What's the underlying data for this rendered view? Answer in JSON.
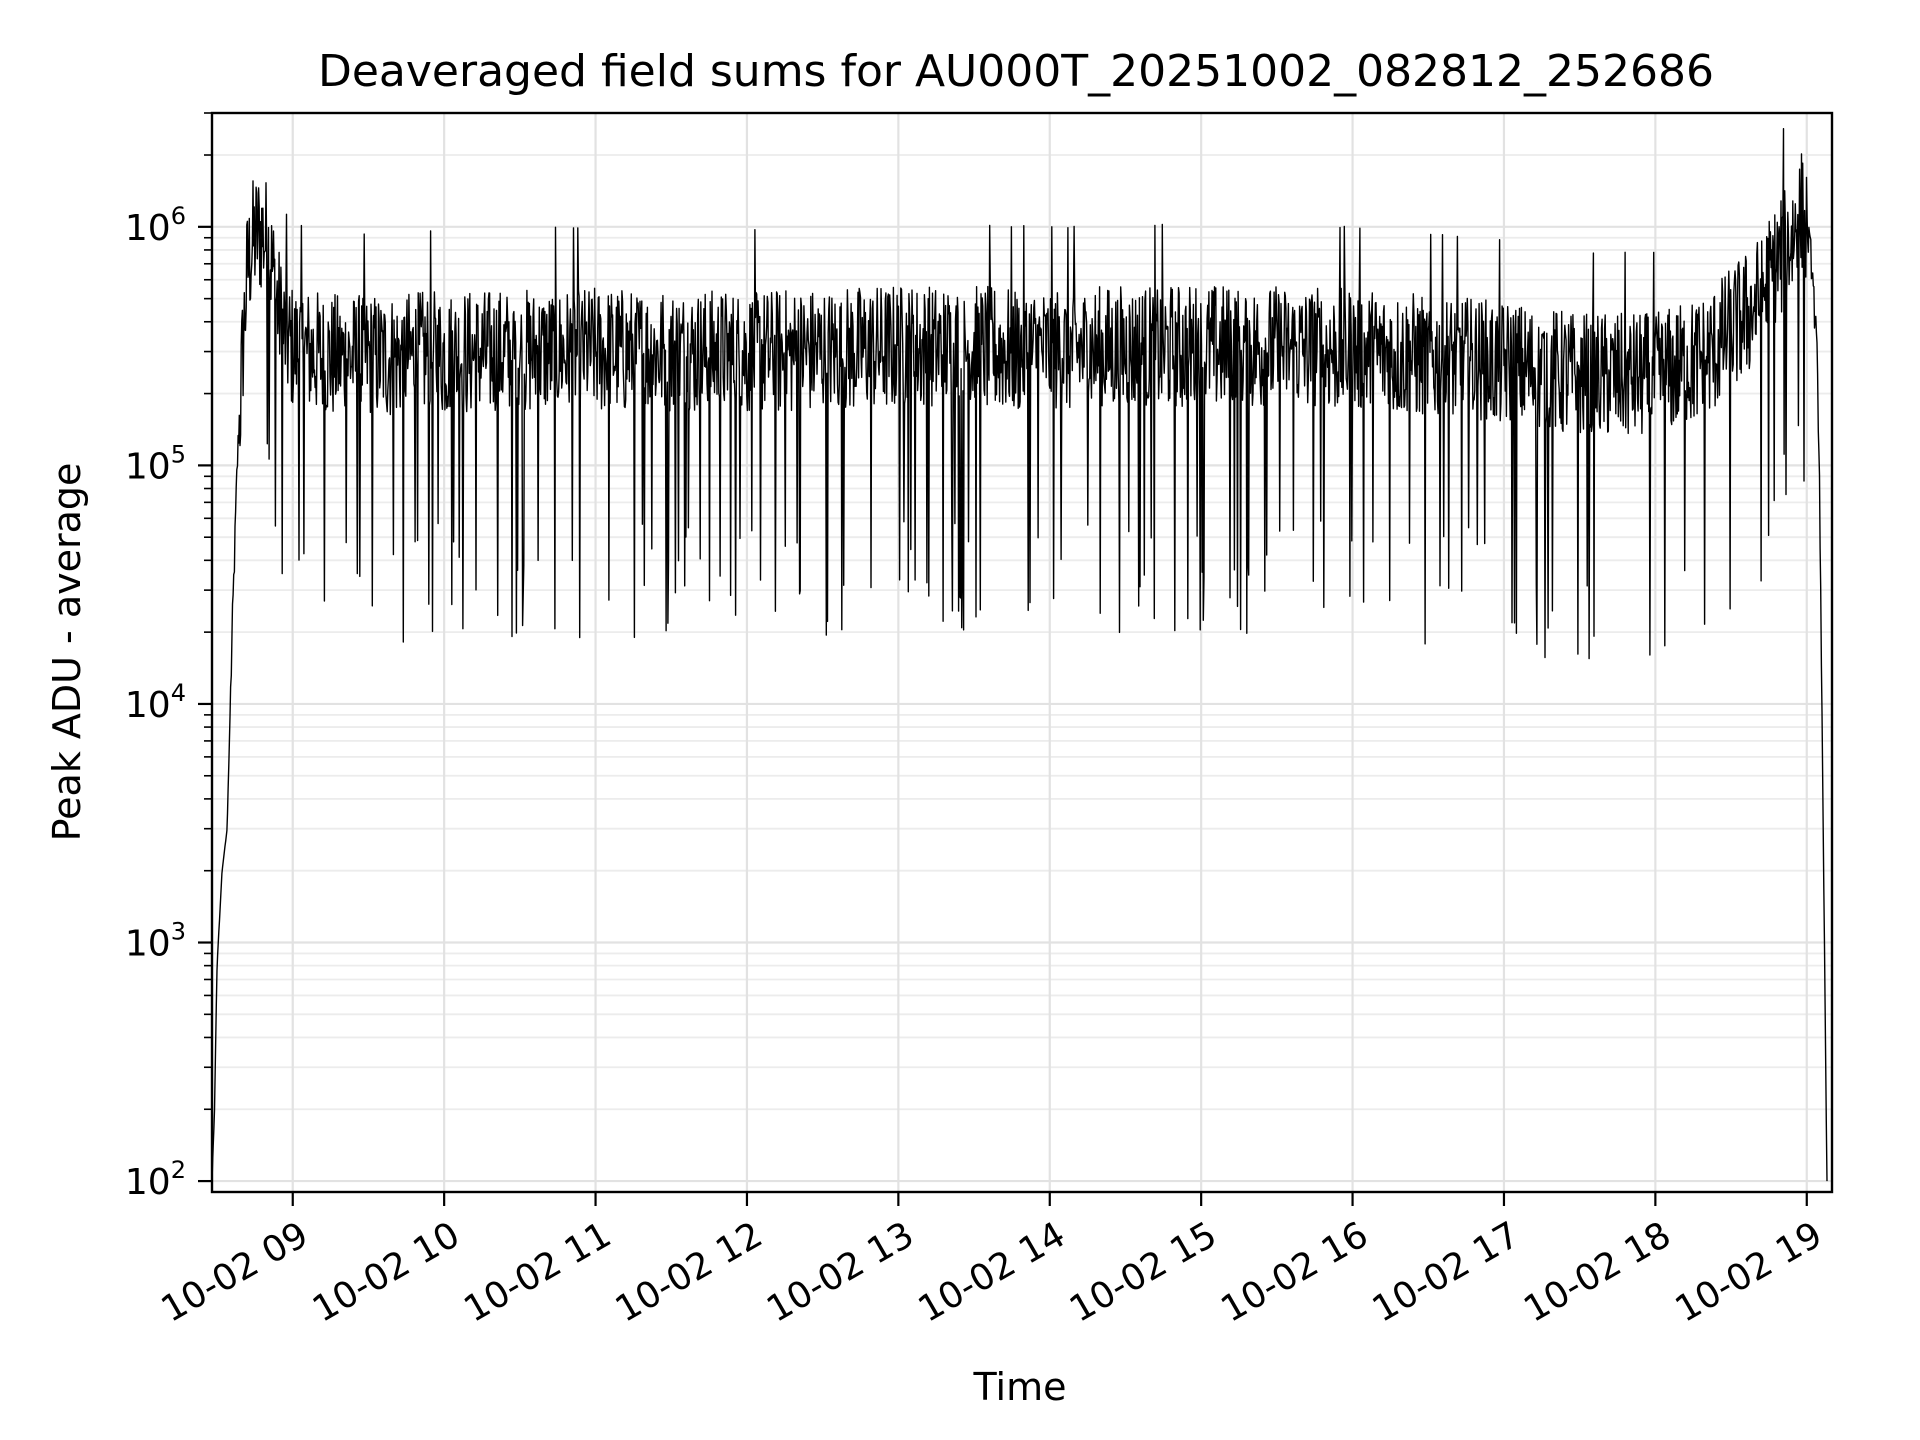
{
  "chart_data": {
    "type": "line",
    "title": "Deaveraged field sums for AU000T_20251002_082812_252686",
    "xlabel": "Time",
    "ylabel": "Peak ADU - average",
    "y_scale": "log",
    "ylim": [
      90,
      3000000
    ],
    "xlim": [
      "2025-10-02 08:28",
      "2025-10-02 19:10"
    ],
    "grid": true,
    "legend": "none",
    "line_color": "#000000",
    "x_ticks": [
      "10-02 09",
      "10-02 10",
      "10-02 11",
      "10-02 12",
      "10-02 13",
      "10-02 14",
      "10-02 15",
      "10-02 16",
      "10-02 17",
      "10-02 18",
      "10-02 19"
    ],
    "y_ticks": [
      {
        "value": 100,
        "base": "10",
        "exp": "2"
      },
      {
        "value": 1000,
        "base": "10",
        "exp": "3"
      },
      {
        "value": 10000,
        "base": "10",
        "exp": "4"
      },
      {
        "value": 100000,
        "base": "10",
        "exp": "5"
      },
      {
        "value": 1000000,
        "base": "10",
        "exp": "6"
      }
    ],
    "series": [
      {
        "x": [
          "2025-10-02 08:28",
          "2025-10-02 08:29",
          "2025-10-02 08:30",
          "2025-10-02 08:32",
          "2025-10-02 08:34",
          "2025-10-02 08:36",
          "2025-10-02 08:38",
          "2025-10-02 08:40",
          "2025-10-02 08:42",
          "2025-10-02 08:44",
          "2025-10-02 08:46",
          "2025-10-02 08:48",
          "2025-10-02 08:50",
          "2025-10-02 08:52",
          "2025-10-02 08:54",
          "2025-10-02 08:56",
          "2025-10-02 08:58",
          "2025-10-02 09:00",
          "2025-10-02 09:15",
          "2025-10-02 09:30",
          "2025-10-02 10:00",
          "2025-10-02 11:00",
          "2025-10-02 12:00",
          "2025-10-02 13:00",
          "2025-10-02 14:00",
          "2025-10-02 15:00",
          "2025-10-02 16:00",
          "2025-10-02 17:00",
          "2025-10-02 17:30",
          "2025-10-02 18:00",
          "2025-10-02 18:20",
          "2025-10-02 18:40",
          "2025-10-02 18:50",
          "2025-10-02 18:55",
          "2025-10-02 18:58",
          "2025-10-02 19:00",
          "2025-10-02 19:02",
          "2025-10-02 19:04",
          "2025-10-02 19:05",
          "2025-10-02 19:06",
          "2025-10-02 19:07",
          "2025-10-02 19:08"
        ],
        "y": [
          100,
          200,
          800,
          2000,
          3000,
          20000,
          100000,
          300000,
          700000,
          900000,
          1000000,
          1000000,
          900000,
          700000,
          500000,
          400000,
          350000,
          330000,
          300000,
          300000,
          310000,
          320000,
          310000,
          330000,
          320000,
          330000,
          320000,
          280000,
          250000,
          250000,
          300000,
          500000,
          800000,
          1000000,
          1200000,
          1000000,
          700000,
          300000,
          100000,
          10000,
          1000,
          100
        ]
      }
    ]
  }
}
